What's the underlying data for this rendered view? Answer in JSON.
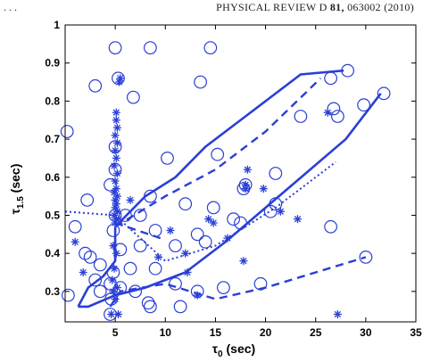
{
  "header": {
    "left": ". . .",
    "journal": "PHYSICAL REVIEW D",
    "volume": "81,",
    "article": "063002 (2010)"
  },
  "chart_data": {
    "type": "scatter",
    "title": "",
    "xlabel_main": "τ",
    "xlabel_sub": "0",
    "xlabel_unit": " (sec)",
    "ylabel_main": "τ",
    "ylabel_sub": "1.5",
    "ylabel_unit": " (sec)",
    "xlim": [
      0,
      35
    ],
    "ylim": [
      0.22,
      1.0
    ],
    "xticks": [
      0,
      5,
      10,
      15,
      20,
      25,
      30,
      35
    ],
    "yticks": [
      0.3,
      0.4,
      0.5,
      0.6,
      0.7,
      0.8,
      0.9,
      1
    ],
    "x_tick_labels": [
      "5",
      "10",
      "15",
      "20",
      "25",
      "30",
      "35"
    ],
    "y_tick_labels": [
      "0.3",
      "0.4",
      "0.5",
      "0.6",
      "0.7",
      "0.8",
      "0.9",
      "1"
    ],
    "color": "#2a3fd6",
    "circles": [
      [
        5,
        0.94
      ],
      [
        8.5,
        0.94
      ],
      [
        14.5,
        0.94
      ],
      [
        5.3,
        0.86
      ],
      [
        3,
        0.84
      ],
      [
        6.8,
        0.81
      ],
      [
        13.5,
        0.85
      ],
      [
        28.2,
        0.88
      ],
      [
        26.5,
        0.86
      ],
      [
        31.8,
        0.82
      ],
      [
        26.8,
        0.78
      ],
      [
        27.2,
        0.76
      ],
      [
        29.8,
        0.79
      ],
      [
        23.5,
        0.76
      ],
      [
        0.2,
        0.72
      ],
      [
        10.2,
        0.65
      ],
      [
        5,
        0.68
      ],
      [
        5,
        0.62
      ],
      [
        4.5,
        0.58
      ],
      [
        15.2,
        0.66
      ],
      [
        21,
        0.61
      ],
      [
        18,
        0.58
      ],
      [
        12,
        0.53
      ],
      [
        14.8,
        0.52
      ],
      [
        21,
        0.53
      ],
      [
        2.2,
        0.54
      ],
      [
        8.5,
        0.55
      ],
      [
        7.5,
        0.5
      ],
      [
        6,
        0.5
      ],
      [
        1,
        0.47
      ],
      [
        9,
        0.46
      ],
      [
        13.2,
        0.45
      ],
      [
        11,
        0.42
      ],
      [
        7.5,
        0.42
      ],
      [
        2,
        0.4
      ],
      [
        5.5,
        0.41
      ],
      [
        14,
        0.43
      ],
      [
        16.8,
        0.49
      ],
      [
        17.5,
        0.48
      ],
      [
        26.5,
        0.47
      ],
      [
        30,
        0.39
      ],
      [
        2.5,
        0.39
      ],
      [
        3.5,
        0.37
      ],
      [
        4.8,
        0.35
      ],
      [
        6.5,
        0.36
      ],
      [
        9,
        0.36
      ],
      [
        3,
        0.33
      ],
      [
        4.5,
        0.32
      ],
      [
        5.5,
        0.31
      ],
      [
        3.5,
        0.3
      ],
      [
        0.3,
        0.29
      ],
      [
        4.6,
        0.28
      ],
      [
        7,
        0.3
      ],
      [
        11,
        0.32
      ],
      [
        15.8,
        0.31
      ],
      [
        13.2,
        0.3
      ],
      [
        19.5,
        0.32
      ],
      [
        8.3,
        0.27
      ],
      [
        8.5,
        0.26
      ],
      [
        11.5,
        0.26
      ],
      [
        4.5,
        0.24
      ],
      [
        17.8,
        0.57
      ],
      [
        5,
        0.5
      ],
      [
        4.8,
        0.46
      ],
      [
        20.5,
        0.51
      ]
    ],
    "stars": [
      [
        5.1,
        0.77
      ],
      [
        5.1,
        0.75
      ],
      [
        5.2,
        0.73
      ],
      [
        5,
        0.71
      ],
      [
        5.2,
        0.69
      ],
      [
        5,
        0.67
      ],
      [
        5.1,
        0.65
      ],
      [
        4.9,
        0.63
      ],
      [
        5.2,
        0.61
      ],
      [
        5,
        0.59
      ],
      [
        5.1,
        0.57
      ],
      [
        4.9,
        0.56
      ],
      [
        5.2,
        0.55
      ],
      [
        5,
        0.54
      ],
      [
        5.1,
        0.53
      ],
      [
        5,
        0.52
      ],
      [
        5.2,
        0.51
      ],
      [
        4.9,
        0.5
      ],
      [
        5.1,
        0.49
      ],
      [
        5,
        0.48
      ],
      [
        5.4,
        0.85
      ],
      [
        5.5,
        0.86
      ],
      [
        4.8,
        0.42
      ],
      [
        5.1,
        0.4
      ],
      [
        4.9,
        0.36
      ],
      [
        4.7,
        0.33
      ],
      [
        5.2,
        0.31
      ],
      [
        4.8,
        0.3
      ],
      [
        5,
        0.28
      ],
      [
        5.3,
        0.24
      ],
      [
        1,
        0.43
      ],
      [
        10.5,
        0.46
      ],
      [
        9.3,
        0.39
      ],
      [
        14.8,
        0.48
      ],
      [
        14.3,
        0.49
      ],
      [
        16.2,
        0.44
      ],
      [
        17.8,
        0.38
      ],
      [
        18.2,
        0.62
      ],
      [
        18,
        0.58
      ],
      [
        18,
        0.57
      ],
      [
        19.8,
        0.57
      ],
      [
        12.2,
        0.35
      ],
      [
        13.2,
        0.29
      ],
      [
        21.5,
        0.51
      ],
      [
        23.2,
        0.49
      ],
      [
        26.2,
        0.77
      ],
      [
        27.2,
        0.24
      ],
      [
        4.6,
        0.24
      ],
      [
        1.8,
        0.35
      ],
      [
        12,
        0.4
      ],
      [
        6.5,
        0.54
      ]
    ],
    "lines": {
      "upper_solid": [
        [
          5,
          0.47
        ],
        [
          8,
          0.55
        ],
        [
          11,
          0.6
        ],
        [
          14,
          0.68
        ],
        [
          18,
          0.76
        ],
        [
          23.5,
          0.87
        ],
        [
          27.8,
          0.88
        ]
      ],
      "lower_solid": [
        [
          1.3,
          0.26
        ],
        [
          2.3,
          0.26
        ],
        [
          5,
          0.29
        ],
        [
          8,
          0.31
        ],
        [
          12,
          0.35
        ],
        [
          16,
          0.43
        ],
        [
          20,
          0.52
        ],
        [
          24,
          0.61
        ],
        [
          28,
          0.7
        ],
        [
          31.5,
          0.82
        ]
      ],
      "left_solid": [
        [
          1.3,
          0.26
        ],
        [
          2.3,
          0.31
        ],
        [
          3.8,
          0.34
        ],
        [
          5,
          0.38
        ],
        [
          5,
          0.47
        ]
      ],
      "upper_dashed": [
        [
          5,
          0.47
        ],
        [
          10,
          0.55
        ],
        [
          15,
          0.62
        ],
        [
          20,
          0.72
        ],
        [
          25.5,
          0.86
        ]
      ],
      "branch_dashed": [
        [
          5,
          0.48
        ],
        [
          9.5,
          0.44
        ]
      ],
      "lower_dashed": [
        [
          4.5,
          0.26
        ],
        [
          5.5,
          0.3
        ],
        [
          10,
          0.32
        ],
        [
          15,
          0.28
        ],
        [
          20,
          0.31
        ],
        [
          25,
          0.35
        ],
        [
          30,
          0.39
        ]
      ],
      "dotted": [
        [
          0,
          0.51
        ],
        [
          5,
          0.5
        ],
        [
          10,
          0.38
        ],
        [
          15,
          0.42
        ],
        [
          21,
          0.52
        ],
        [
          27,
          0.64
        ]
      ]
    }
  }
}
